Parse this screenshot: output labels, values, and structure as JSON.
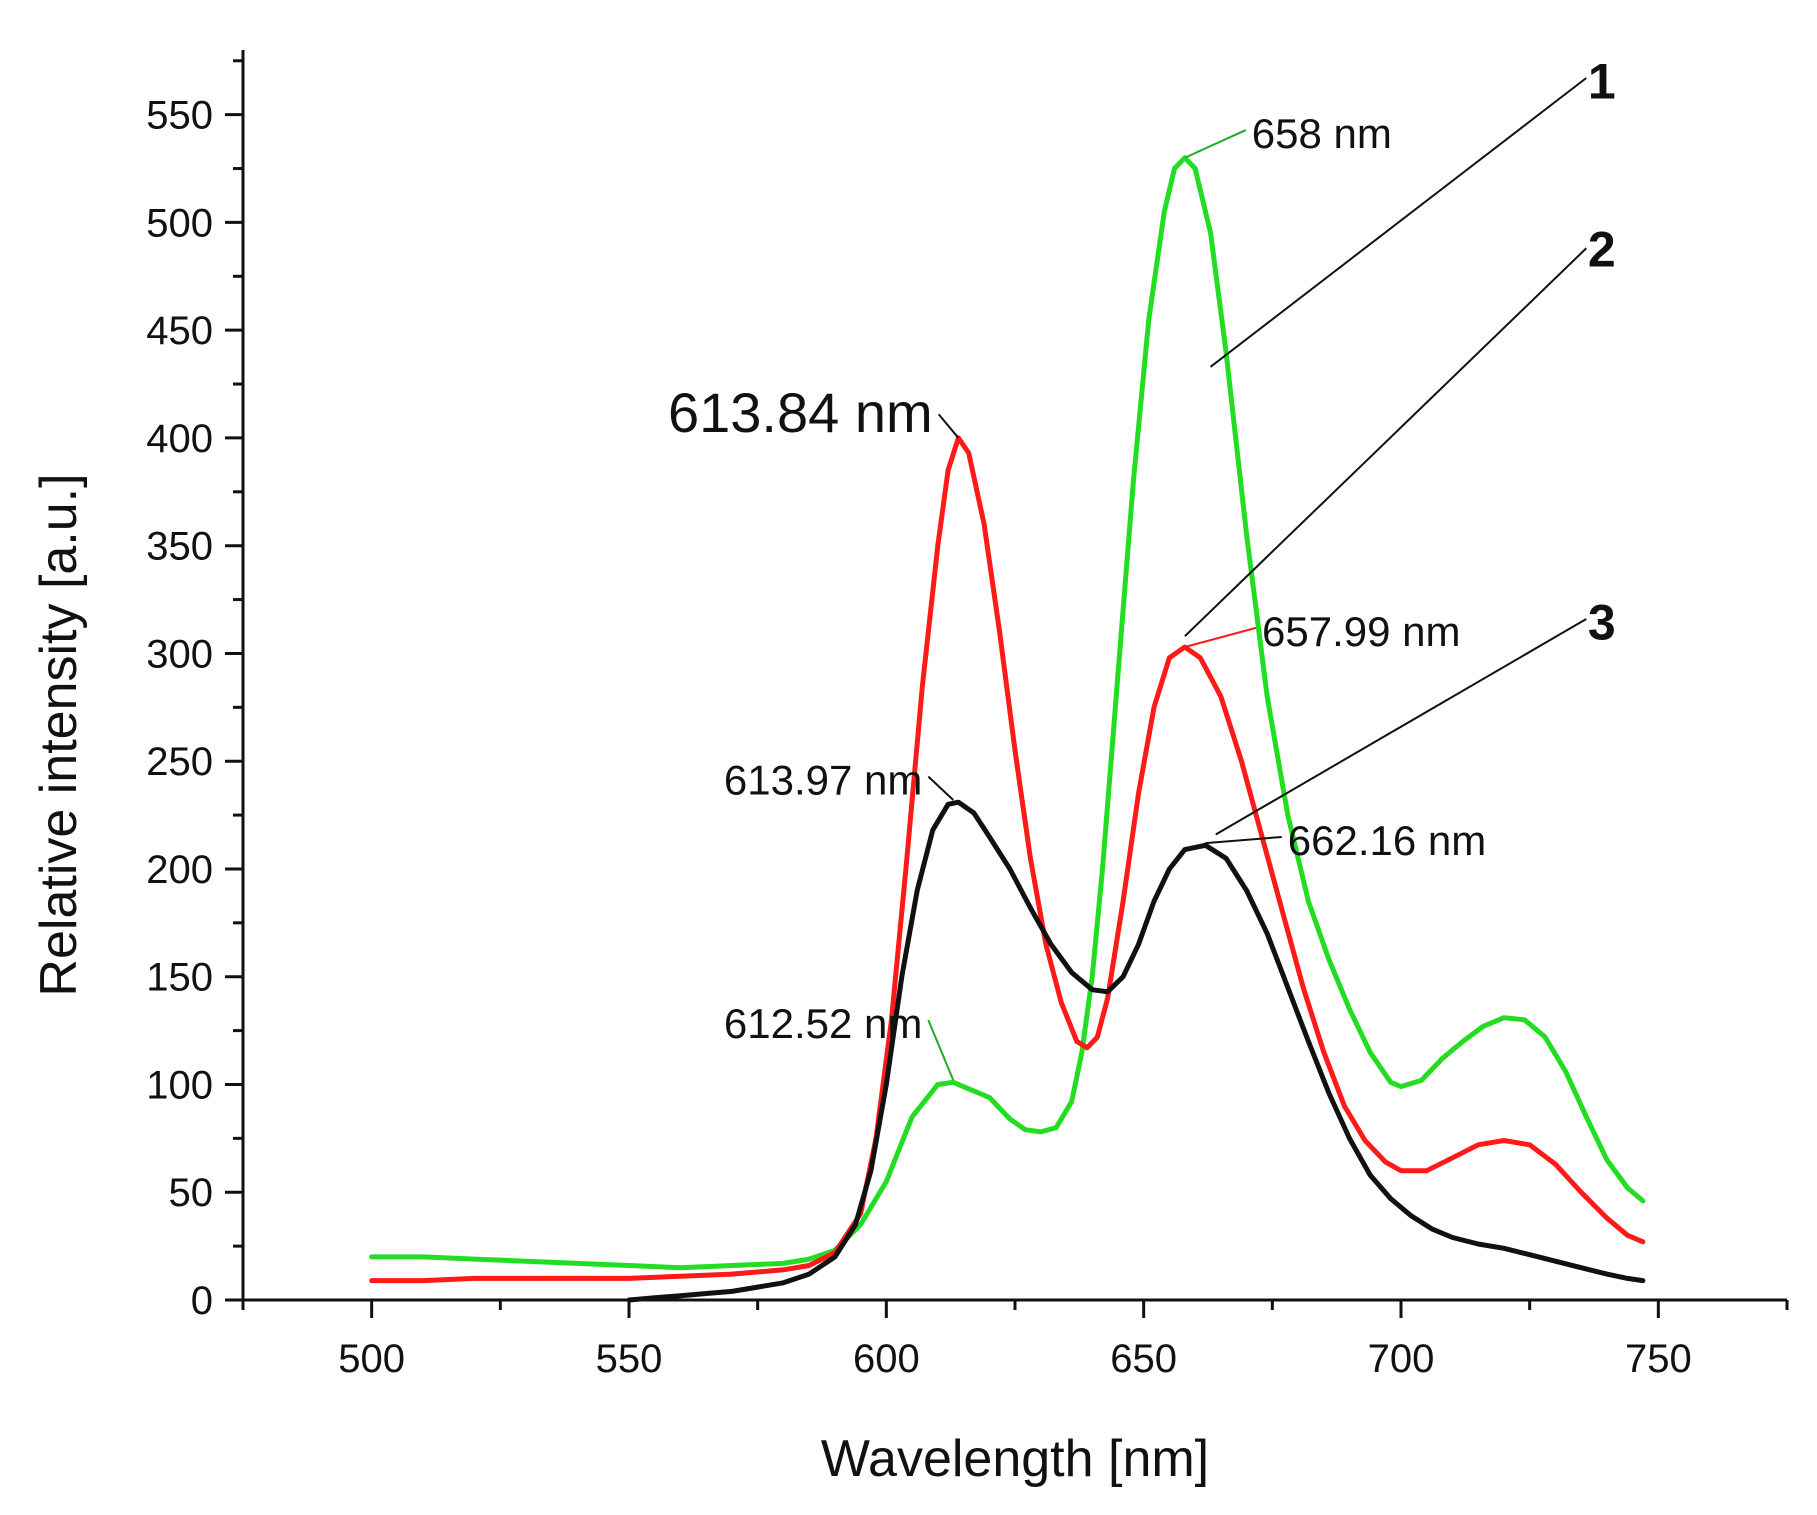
{
  "chart_data": {
    "type": "line",
    "title": "",
    "xlabel": "Wavelength [nm]",
    "ylabel": "Relative intensity [a.u.]",
    "xlim": [
      475,
      775
    ],
    "ylim": [
      0,
      580
    ],
    "x_ticks": [
      500,
      550,
      600,
      650,
      700,
      750
    ],
    "x_minor_step": 25,
    "y_ticks": [
      0,
      50,
      100,
      150,
      200,
      250,
      300,
      350,
      400,
      450,
      500,
      550
    ],
    "y_minor_step": 25,
    "grid": false,
    "series": [
      {
        "name": "1",
        "color": "#22dd22",
        "points": [
          [
            500,
            20
          ],
          [
            510,
            20
          ],
          [
            520,
            19
          ],
          [
            530,
            18
          ],
          [
            540,
            17
          ],
          [
            550,
            16
          ],
          [
            560,
            15
          ],
          [
            570,
            16
          ],
          [
            580,
            17
          ],
          [
            585,
            19
          ],
          [
            590,
            23
          ],
          [
            595,
            35
          ],
          [
            600,
            55
          ],
          [
            605,
            85
          ],
          [
            610,
            100
          ],
          [
            613,
            101
          ],
          [
            616,
            98
          ],
          [
            620,
            94
          ],
          [
            624,
            84
          ],
          [
            627,
            79
          ],
          [
            630,
            78
          ],
          [
            633,
            80
          ],
          [
            636,
            92
          ],
          [
            638,
            115
          ],
          [
            640,
            150
          ],
          [
            642,
            200
          ],
          [
            645,
            290
          ],
          [
            648,
            380
          ],
          [
            651,
            455
          ],
          [
            654,
            505
          ],
          [
            656,
            525
          ],
          [
            658,
            530
          ],
          [
            660,
            525
          ],
          [
            663,
            495
          ],
          [
            666,
            440
          ],
          [
            670,
            355
          ],
          [
            674,
            280
          ],
          [
            678,
            225
          ],
          [
            682,
            185
          ],
          [
            686,
            158
          ],
          [
            690,
            135
          ],
          [
            694,
            115
          ],
          [
            698,
            101
          ],
          [
            700,
            99
          ],
          [
            704,
            102
          ],
          [
            708,
            112
          ],
          [
            712,
            120
          ],
          [
            716,
            127
          ],
          [
            720,
            131
          ],
          [
            724,
            130
          ],
          [
            728,
            122
          ],
          [
            732,
            106
          ],
          [
            736,
            85
          ],
          [
            740,
            65
          ],
          [
            744,
            52
          ],
          [
            747,
            46
          ]
        ]
      },
      {
        "name": "2",
        "color": "#ff1a1a",
        "points": [
          [
            500,
            9
          ],
          [
            510,
            9
          ],
          [
            520,
            10
          ],
          [
            530,
            10
          ],
          [
            540,
            10
          ],
          [
            550,
            10
          ],
          [
            560,
            11
          ],
          [
            570,
            12
          ],
          [
            580,
            14
          ],
          [
            585,
            16
          ],
          [
            590,
            22
          ],
          [
            595,
            40
          ],
          [
            598,
            75
          ],
          [
            601,
            130
          ],
          [
            604,
            205
          ],
          [
            607,
            285
          ],
          [
            610,
            350
          ],
          [
            612,
            385
          ],
          [
            614,
            400
          ],
          [
            616,
            393
          ],
          [
            619,
            360
          ],
          [
            622,
            310
          ],
          [
            625,
            255
          ],
          [
            628,
            205
          ],
          [
            631,
            165
          ],
          [
            634,
            138
          ],
          [
            637,
            120
          ],
          [
            639,
            117
          ],
          [
            641,
            122
          ],
          [
            643,
            140
          ],
          [
            646,
            185
          ],
          [
            649,
            235
          ],
          [
            652,
            275
          ],
          [
            655,
            298
          ],
          [
            658,
            303
          ],
          [
            661,
            298
          ],
          [
            665,
            280
          ],
          [
            669,
            250
          ],
          [
            673,
            215
          ],
          [
            677,
            180
          ],
          [
            681,
            145
          ],
          [
            685,
            115
          ],
          [
            689,
            90
          ],
          [
            693,
            74
          ],
          [
            697,
            64
          ],
          [
            700,
            60
          ],
          [
            705,
            60
          ],
          [
            710,
            66
          ],
          [
            715,
            72
          ],
          [
            720,
            74
          ],
          [
            725,
            72
          ],
          [
            730,
            63
          ],
          [
            735,
            50
          ],
          [
            740,
            38
          ],
          [
            744,
            30
          ],
          [
            747,
            27
          ]
        ]
      },
      {
        "name": "3",
        "color": "#111111",
        "points": [
          [
            550,
            0
          ],
          [
            555,
            1
          ],
          [
            560,
            2
          ],
          [
            565,
            3
          ],
          [
            570,
            4
          ],
          [
            575,
            6
          ],
          [
            580,
            8
          ],
          [
            585,
            12
          ],
          [
            590,
            20
          ],
          [
            594,
            35
          ],
          [
            597,
            60
          ],
          [
            600,
            100
          ],
          [
            603,
            150
          ],
          [
            606,
            190
          ],
          [
            609,
            218
          ],
          [
            612,
            230
          ],
          [
            614,
            231
          ],
          [
            617,
            226
          ],
          [
            620,
            215
          ],
          [
            624,
            200
          ],
          [
            628,
            182
          ],
          [
            632,
            165
          ],
          [
            636,
            152
          ],
          [
            640,
            144
          ],
          [
            643,
            143
          ],
          [
            646,
            150
          ],
          [
            649,
            165
          ],
          [
            652,
            185
          ],
          [
            655,
            200
          ],
          [
            658,
            209
          ],
          [
            662,
            211
          ],
          [
            666,
            205
          ],
          [
            670,
            190
          ],
          [
            674,
            170
          ],
          [
            678,
            145
          ],
          [
            682,
            120
          ],
          [
            686,
            96
          ],
          [
            690,
            75
          ],
          [
            694,
            58
          ],
          [
            698,
            47
          ],
          [
            702,
            39
          ],
          [
            706,
            33
          ],
          [
            710,
            29
          ],
          [
            715,
            26
          ],
          [
            720,
            24
          ],
          [
            725,
            21
          ],
          [
            730,
            18
          ],
          [
            735,
            15
          ],
          [
            740,
            12
          ],
          [
            744,
            10
          ],
          [
            747,
            9
          ]
        ]
      }
    ],
    "peak_annotations": [
      {
        "text": "658 nm",
        "x": 658,
        "y": 530,
        "color": "#22aa22",
        "large": false,
        "anchor": "start",
        "label_at": [
          671,
          541
        ]
      },
      {
        "text": "613.84 nm",
        "x": 614,
        "y": 400,
        "color": "#111111",
        "large": true,
        "anchor": "end",
        "label_at": [
          609,
          411
        ]
      },
      {
        "text": "657.99 nm",
        "x": 658,
        "y": 303,
        "color": "#ff1a1a",
        "large": false,
        "anchor": "start",
        "label_at": [
          673,
          310
        ]
      },
      {
        "text": "613.97 nm",
        "x": 613,
        "y": 232,
        "color": "#111111",
        "large": false,
        "anchor": "end",
        "label_at": [
          607,
          241
        ]
      },
      {
        "text": "662.16 nm",
        "x": 662,
        "y": 212,
        "color": "#111111",
        "large": false,
        "anchor": "start",
        "label_at": [
          678,
          213
        ]
      },
      {
        "text": "612.52 nm",
        "x": 613,
        "y": 102,
        "color": "#22aa22",
        "large": false,
        "anchor": "end",
        "label_at": [
          607,
          128
        ]
      }
    ],
    "curve_labels": [
      {
        "text": "1",
        "label_at": [
          739,
          565
        ],
        "line_from": [
          736,
          567
        ],
        "line_to": [
          663,
          433
        ]
      },
      {
        "text": "2",
        "label_at": [
          739,
          487
        ],
        "line_from": [
          736,
          488
        ],
        "line_to": [
          658,
          308
        ]
      },
      {
        "text": "3",
        "label_at": [
          739,
          314
        ],
        "line_from": [
          736,
          316
        ],
        "line_to": [
          664,
          216
        ]
      }
    ]
  }
}
